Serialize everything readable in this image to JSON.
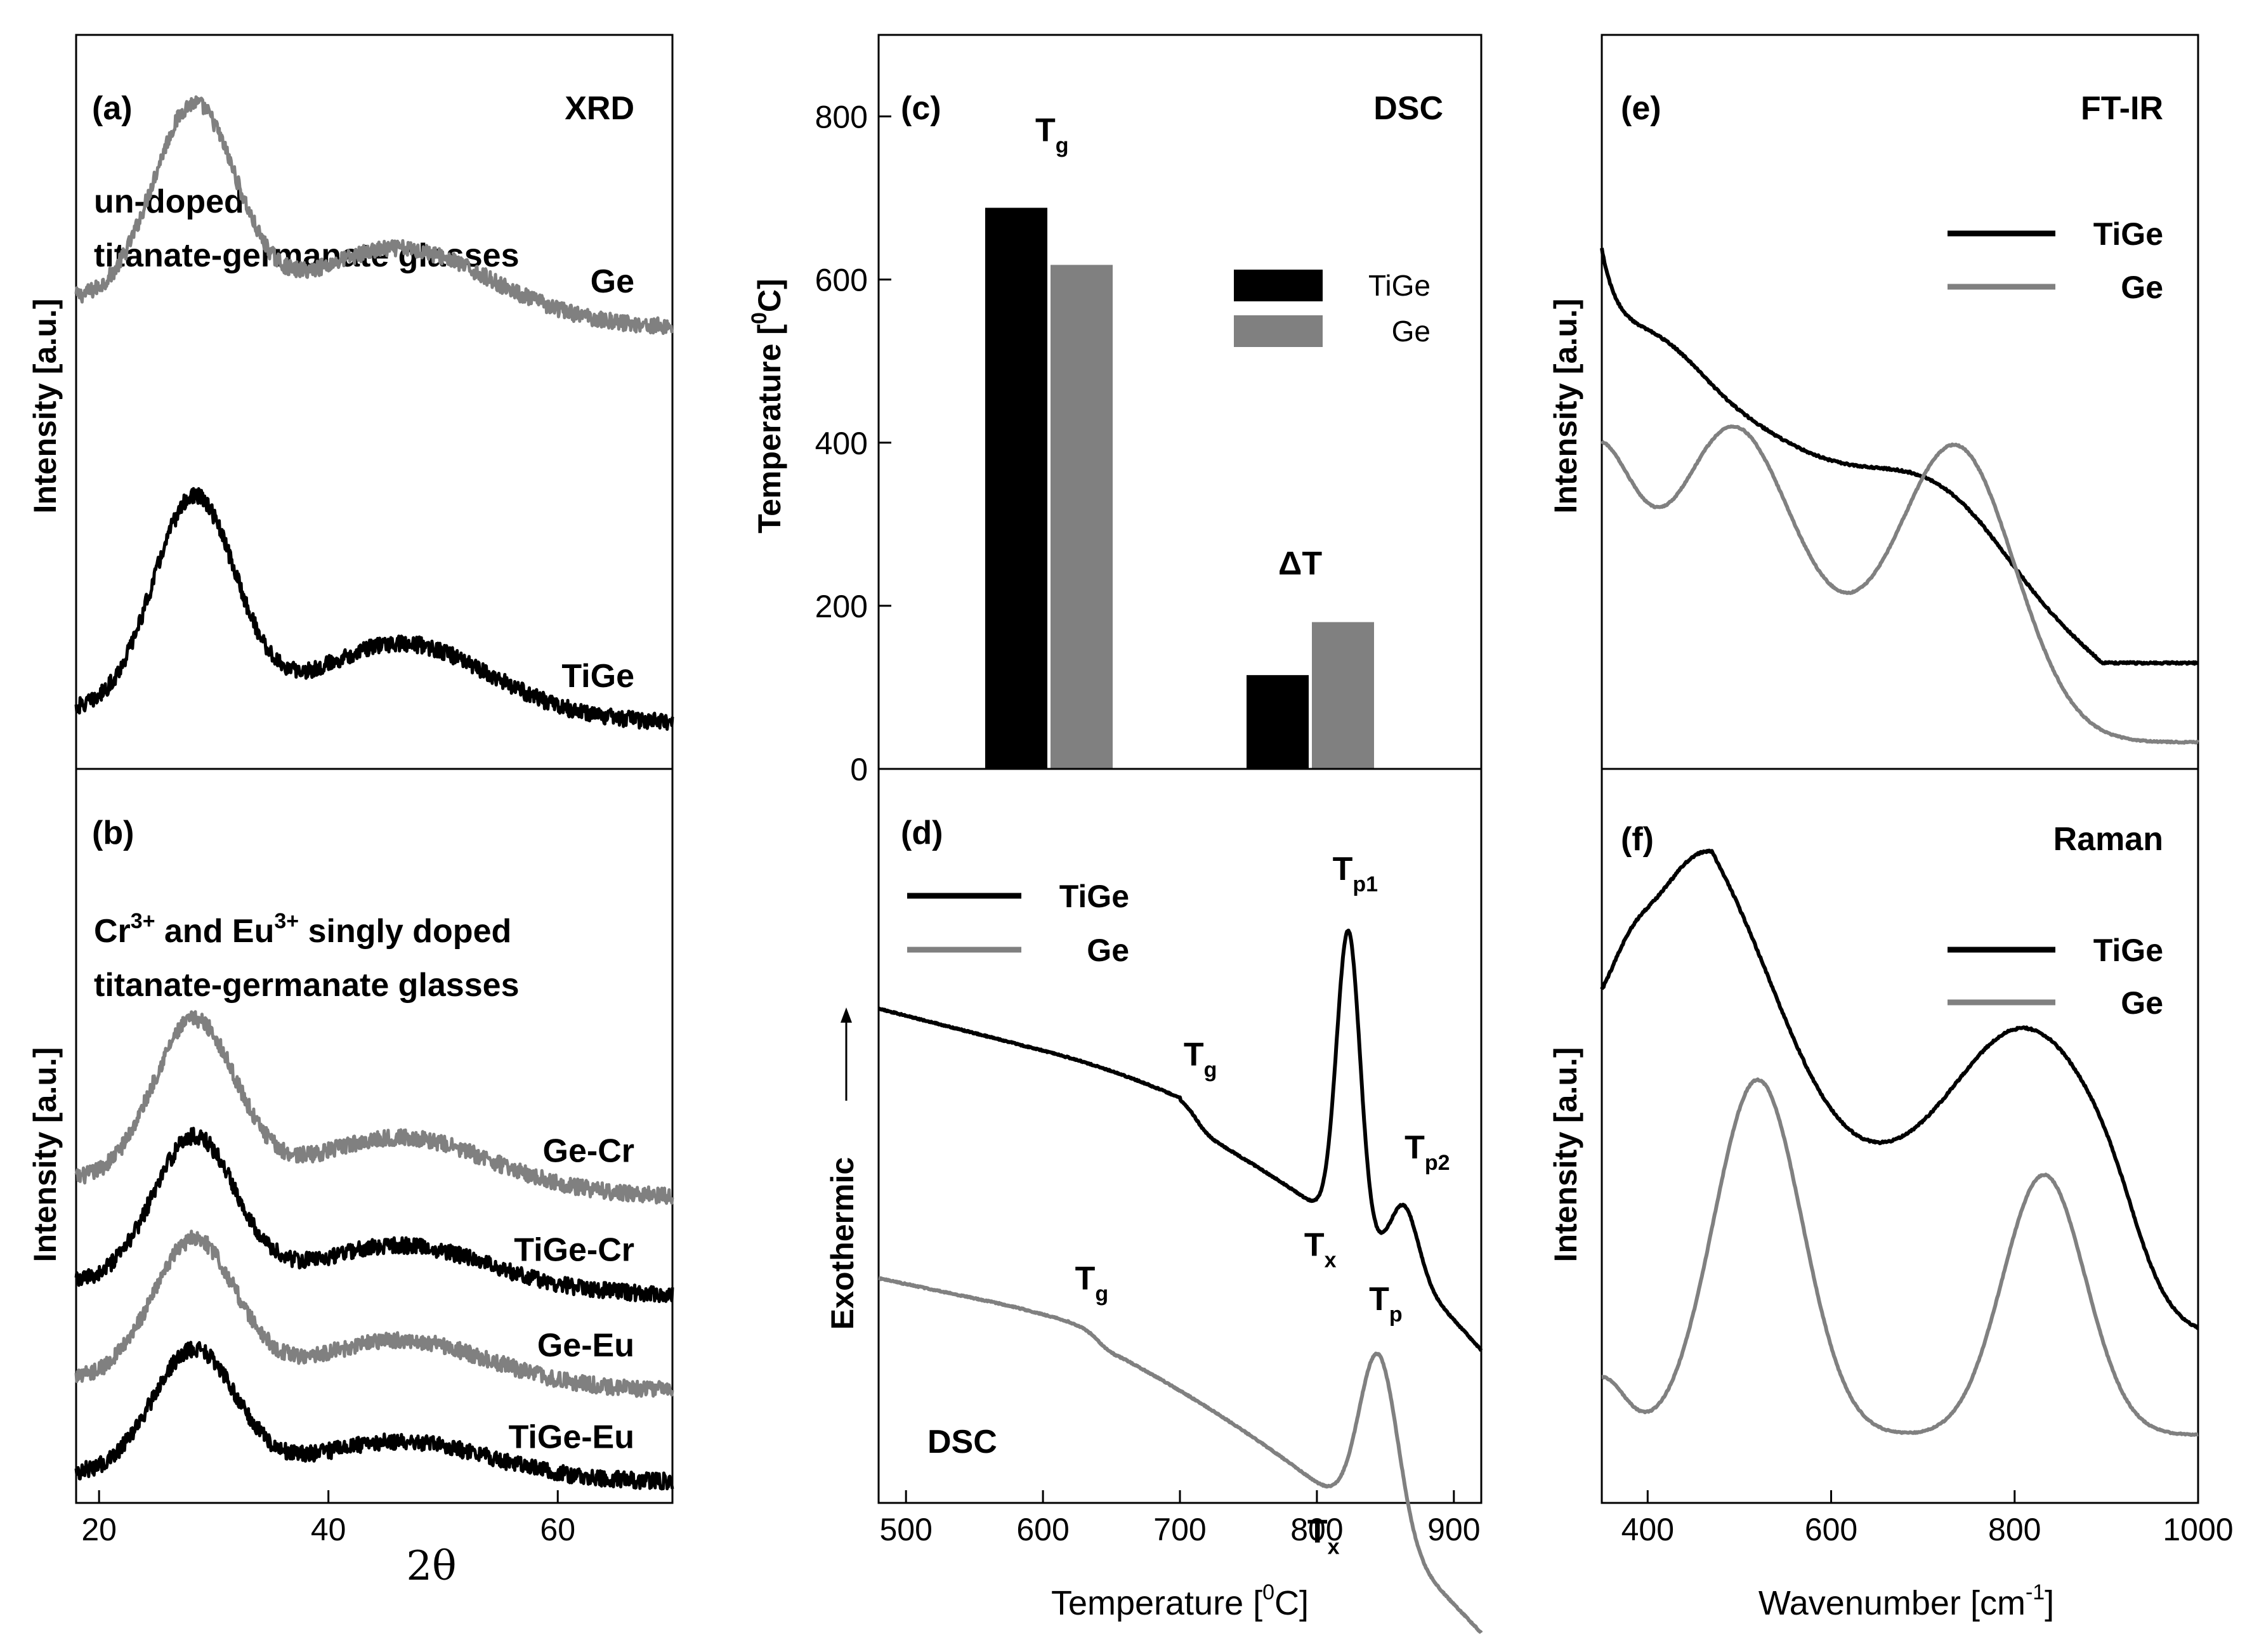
{
  "colors": {
    "tige": "#000000",
    "ge": "#808080"
  },
  "chart_data": [
    {
      "id": "a",
      "type": "line",
      "panel_label": "(a)",
      "title": "XRD",
      "xlabel": "2θ",
      "ylabel": "Intensity [a.u.]",
      "xlim": [
        18,
        70
      ],
      "xticks": [
        20,
        40,
        60
      ],
      "description_lines": [
        "un-doped",
        "titanate-germanate glasses"
      ],
      "series": [
        {
          "name": "Ge",
          "color": "#808080",
          "baseline": 0.64,
          "peak1": 0.27,
          "peak2": 0.09,
          "end": 0.57
        },
        {
          "name": "TiGe",
          "color": "#000000",
          "baseline": 0.08,
          "peak1": 0.29,
          "peak2": 0.1,
          "end": 0.05
        }
      ]
    },
    {
      "id": "b",
      "type": "line",
      "panel_label": "(b)",
      "xlabel": "2θ",
      "ylabel": "Intensity [a.u.]",
      "xlim": [
        18,
        70
      ],
      "xticks": [
        20,
        40,
        60
      ],
      "description_parts": [
        "Cr",
        "3+",
        " and Eu",
        "3+",
        " singly doped"
      ],
      "description_line2": "titanate-germanate glasses",
      "series": [
        {
          "name": "Ge-Cr",
          "color": "#808080",
          "baseline": 0.44,
          "peak1": 0.22,
          "peak2": 0.07,
          "end": 0.4
        },
        {
          "name": "TiGe-Cr",
          "color": "#000000",
          "baseline": 0.3,
          "peak1": 0.2,
          "peak2": 0.06,
          "end": 0.27
        },
        {
          "name": "Ge-Eu",
          "color": "#808080",
          "baseline": 0.17,
          "peak1": 0.19,
          "peak2": 0.06,
          "end": 0.14
        },
        {
          "name": "TiGe-Eu",
          "color": "#000000",
          "baseline": 0.04,
          "peak1": 0.17,
          "peak2": 0.05,
          "end": 0.02
        }
      ]
    },
    {
      "id": "c",
      "type": "bar",
      "panel_label": "(c)",
      "title": "DSC",
      "ylabel_main": "Temperature [",
      "ylabel_sup": "0",
      "ylabel_end": "C]",
      "ylim": [
        0,
        900
      ],
      "yticks": [
        0,
        200,
        400,
        600,
        800
      ],
      "groups": [
        {
          "label_main": "T",
          "label_sub": "g",
          "values": {
            "TiGe": 688,
            "Ge": 618
          }
        },
        {
          "label_main": "ΔT",
          "label_sub": "",
          "values": {
            "TiGe": 115,
            "Ge": 180
          }
        }
      ],
      "legend": [
        "TiGe",
        "Ge"
      ]
    },
    {
      "id": "d",
      "type": "line",
      "panel_label": "(d)",
      "title": "DSC",
      "xlabel_main": "Temperature [",
      "xlabel_sup": "0",
      "xlabel_end": "C]",
      "ylabel": "Exothermic",
      "xlim": [
        480,
        920
      ],
      "xticks": [
        500,
        600,
        700,
        800,
        900
      ],
      "legend": [
        "TiGe",
        "Ge"
      ],
      "annotations": [
        {
          "main": "T",
          "sub": "p1",
          "series": "TiGe",
          "x": 823
        },
        {
          "main": "T",
          "sub": "g",
          "series": "TiGe",
          "x": 712
        },
        {
          "main": "T",
          "sub": "p2",
          "series": "TiGe",
          "x": 864
        },
        {
          "main": "T",
          "sub": "x",
          "series": "TiGe",
          "x": 800
        },
        {
          "main": "T",
          "sub": "g",
          "series": "Ge",
          "x": 635
        },
        {
          "main": "T",
          "sub": "p",
          "series": "Ge",
          "x": 845
        },
        {
          "main": "T",
          "sub": "x",
          "series": "Ge",
          "x": 800
        }
      ]
    },
    {
      "id": "e",
      "type": "line",
      "panel_label": "(e)",
      "title": "FT-IR",
      "ylabel": "Intensity [a.u.]",
      "xlim": [
        350,
        1000
      ],
      "legend": [
        "TiGe",
        "Ge"
      ]
    },
    {
      "id": "f",
      "type": "line",
      "panel_label": "(f)",
      "title": "Raman",
      "xlabel_main": "Wavenumber [cm",
      "xlabel_sup": "-1",
      "xlabel_end": "]",
      "ylabel": "Intensity [a.u.]",
      "xlim": [
        350,
        1000
      ],
      "xticks": [
        400,
        600,
        800,
        1000
      ],
      "legend": [
        "TiGe",
        "Ge"
      ]
    }
  ]
}
